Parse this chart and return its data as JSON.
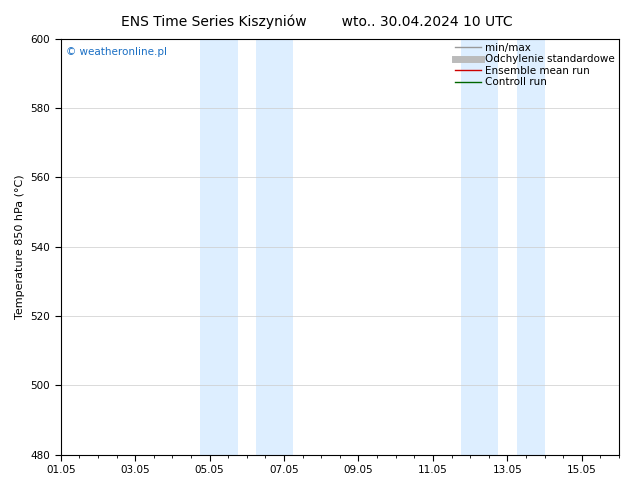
{
  "title": "ENS Time Series Kiszyniów",
  "title2": "wto.. 30.04.2024 10 UTC",
  "ylabel": "Temperature 850 hPa (°C)",
  "ylim": [
    480,
    600
  ],
  "yticks": [
    480,
    500,
    520,
    540,
    560,
    580,
    600
  ],
  "xtick_labels": [
    "01.05",
    "03.05",
    "05.05",
    "07.05",
    "09.05",
    "11.05",
    "13.05",
    "15.05"
  ],
  "xtick_positions": [
    0,
    2,
    4,
    6,
    8,
    10,
    12,
    14
  ],
  "xlim": [
    0,
    15
  ],
  "shaded_bands": [
    {
      "x_start": 3.75,
      "x_end": 4.75,
      "color": "#ddeeff"
    },
    {
      "x_start": 5.25,
      "x_end": 6.25,
      "color": "#ddeeff"
    },
    {
      "x_start": 10.75,
      "x_end": 11.75,
      "color": "#ddeeff"
    },
    {
      "x_start": 12.25,
      "x_end": 13.0,
      "color": "#ddeeff"
    }
  ],
  "watermark": "© weatheronline.pl",
  "watermark_color": "#1a6fc4",
  "background_color": "#ffffff",
  "plot_bg_color": "#ffffff",
  "legend_items": [
    {
      "label": "min/max",
      "color": "#999999",
      "lw": 1.0
    },
    {
      "label": "Odchylenie standardowe",
      "color": "#bbbbbb",
      "lw": 5
    },
    {
      "label": "Ensemble mean run",
      "color": "#cc0000",
      "lw": 1.0
    },
    {
      "label": "Controll run",
      "color": "#006600",
      "lw": 1.0
    }
  ],
  "grid_color": "#cccccc",
  "tick_color": "#000000",
  "spine_color": "#000000",
  "title_fontsize": 10,
  "axis_label_fontsize": 8,
  "tick_fontsize": 7.5,
  "legend_fontsize": 7.5,
  "figsize": [
    6.34,
    4.9
  ],
  "dpi": 100
}
